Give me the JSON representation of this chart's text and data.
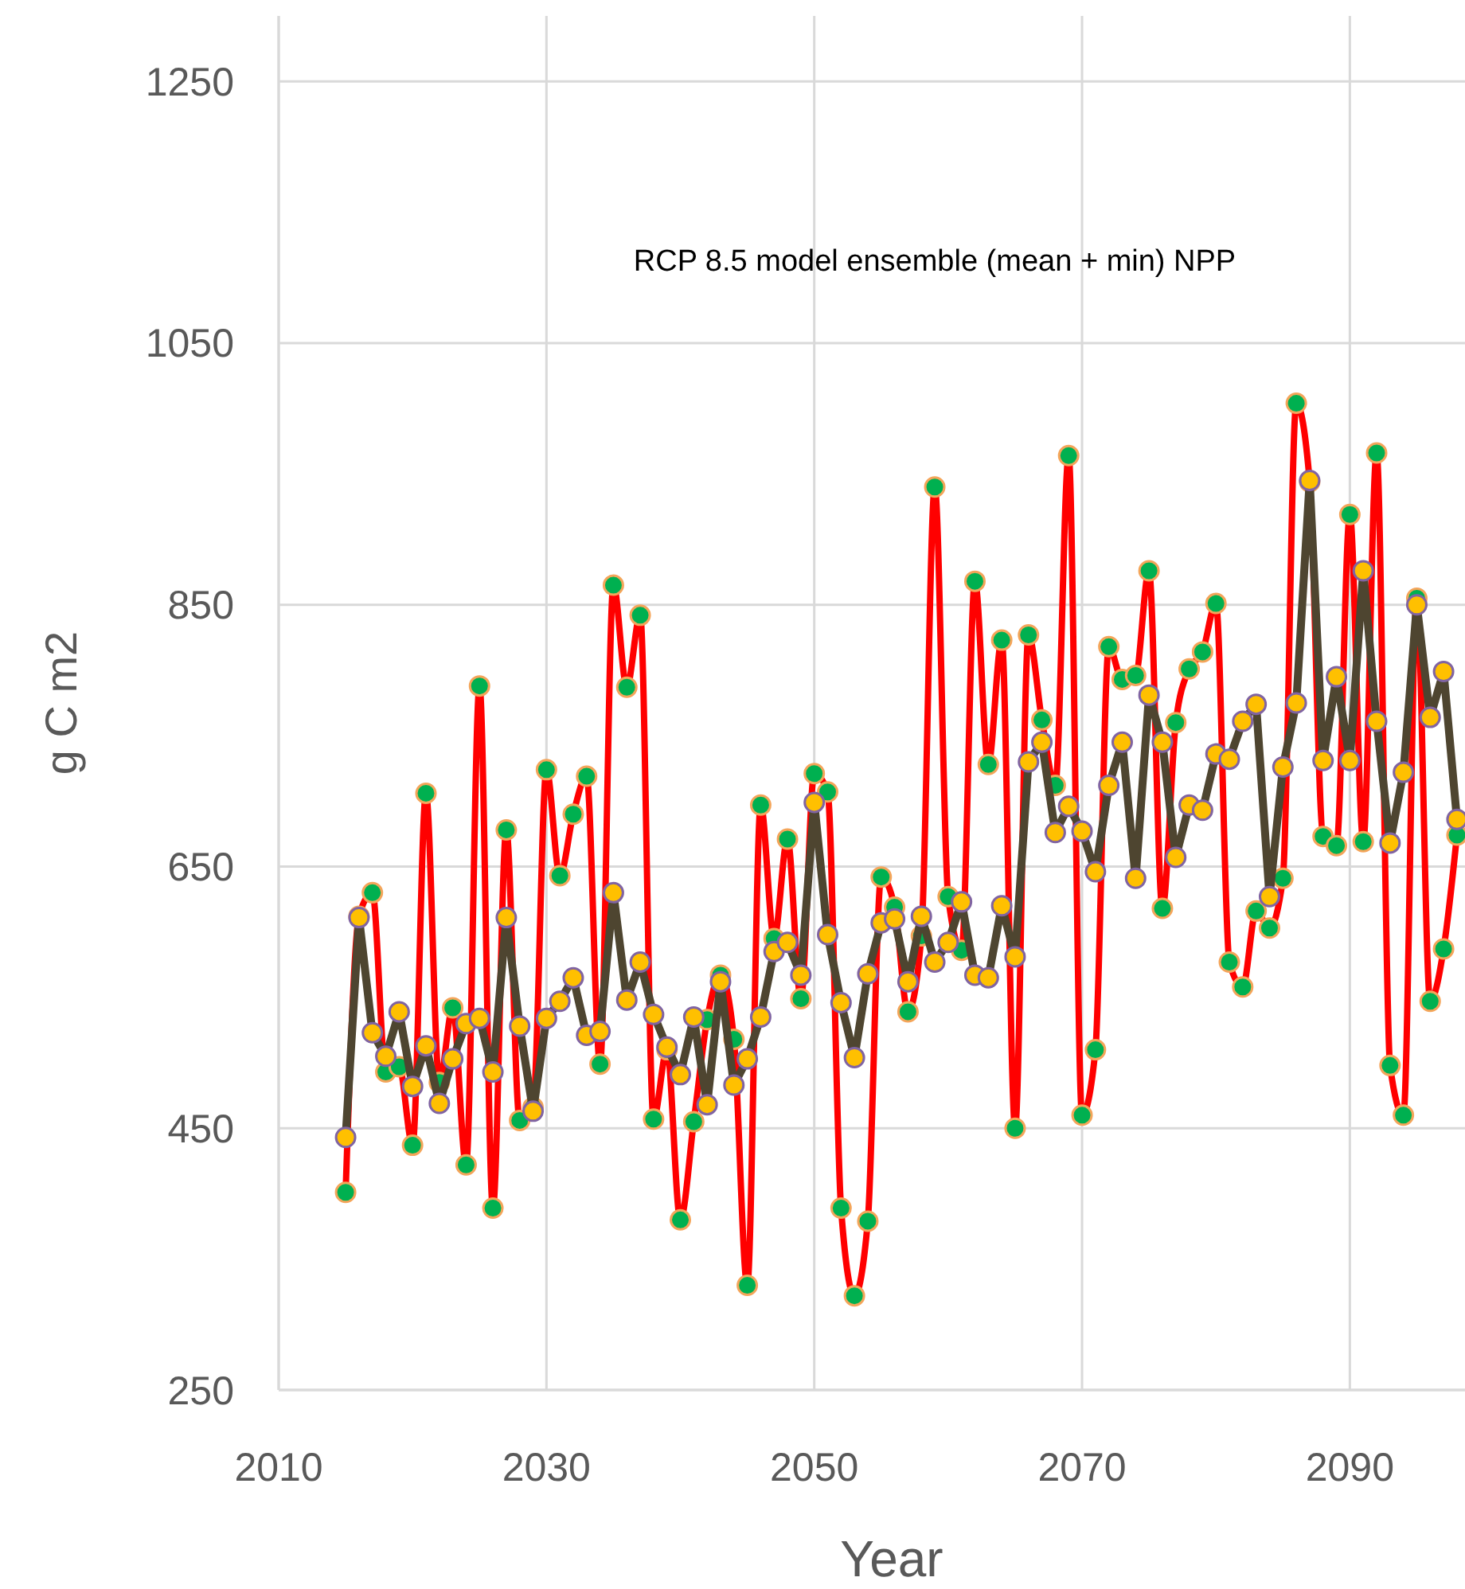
{
  "chart_data": {
    "type": "line",
    "title": "RCP 8.5 model ensemble (mean + min)  NPP",
    "xlabel": "Year",
    "ylabel": "g C m2",
    "x": [
      2015,
      2016,
      2017,
      2018,
      2019,
      2020,
      2021,
      2022,
      2023,
      2024,
      2025,
      2026,
      2027,
      2028,
      2029,
      2030,
      2031,
      2032,
      2033,
      2034,
      2035,
      2036,
      2037,
      2038,
      2039,
      2040,
      2041,
      2042,
      2043,
      2044,
      2045,
      2046,
      2047,
      2048,
      2049,
      2050,
      2051,
      2052,
      2053,
      2054,
      2055,
      2056,
      2057,
      2058,
      2059,
      2060,
      2061,
      2062,
      2063,
      2064,
      2065,
      2066,
      2067,
      2068,
      2069,
      2070,
      2071,
      2072,
      2073,
      2074,
      2075,
      2076,
      2077,
      2078,
      2079,
      2080,
      2081,
      2082,
      2083,
      2084,
      2085,
      2086,
      2087,
      2088,
      2089,
      2090,
      2091,
      2092,
      2093,
      2094,
      2095,
      2096,
      2097,
      2098
    ],
    "series": [
      {
        "color": "#ff0000",
        "values": [
          401,
          612,
          630,
          493,
          497,
          437,
          706,
          485,
          542,
          422,
          788,
          389,
          678,
          456,
          466,
          724,
          643,
          690,
          719,
          499,
          865,
          787,
          842,
          457,
          510,
          380,
          455,
          533,
          567,
          518,
          330,
          697,
          595,
          671,
          549,
          721,
          707,
          389,
          322,
          379,
          642,
          619,
          539,
          597,
          940,
          627,
          586,
          868,
          728,
          823,
          450,
          827,
          762,
          712,
          964,
          460,
          510,
          818,
          793,
          796,
          876,
          618,
          760,
          801,
          814,
          851,
          577,
          558,
          616,
          603,
          641,
          1004,
          944,
          673,
          666,
          919,
          669,
          966,
          498,
          460,
          855,
          547,
          587,
          674
        ]
      },
      {
        "color": "#4e4530",
        "values": [
          443,
          611,
          523,
          505,
          539,
          482,
          513,
          469,
          503,
          530,
          534,
          493,
          611,
          528,
          463,
          534,
          547,
          565,
          521,
          524,
          630,
          548,
          577,
          537,
          512,
          491,
          535,
          468,
          562,
          483,
          503,
          535,
          585,
          592,
          567,
          699,
          598,
          546,
          504,
          568,
          607,
          610,
          562,
          612,
          577,
          592,
          623,
          567,
          565,
          620,
          581,
          730,
          745,
          676,
          696,
          677,
          646,
          712,
          745,
          641,
          781,
          745,
          657,
          697,
          693,
          736,
          732,
          761,
          774,
          627,
          726,
          775,
          945,
          731,
          795,
          731,
          876,
          761,
          668,
          722,
          850,
          764,
          799,
          686
        ]
      }
    ],
    "xlim": [
      2010,
      2098.6
    ],
    "xticks": [
      2010,
      2030,
      2050,
      2070,
      2090
    ],
    "ylim": [
      250,
      1300
    ],
    "yticks": [
      250,
      450,
      650,
      850,
      1050,
      1250
    ],
    "grid": true,
    "marker": "circle"
  }
}
